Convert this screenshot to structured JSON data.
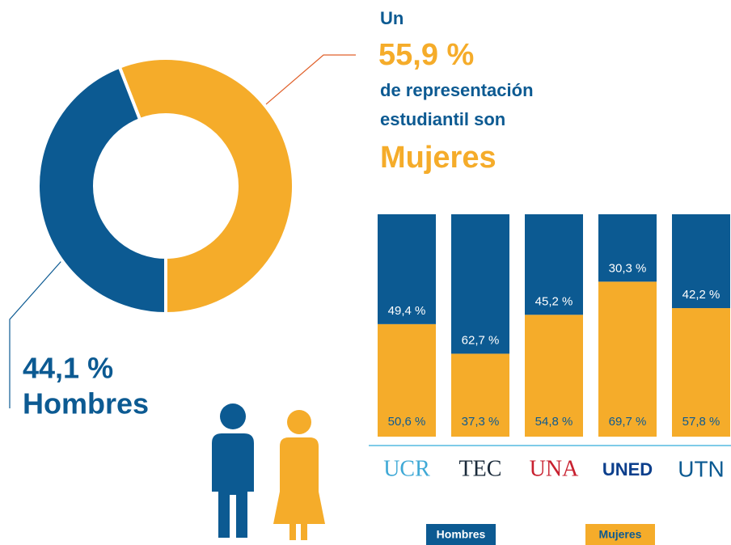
{
  "chart_data": [
    {
      "type": "donut",
      "annotations": [
        "Un",
        "de representación",
        "estudiantil son"
      ],
      "categories": [
        "Mujeres",
        "Hombres"
      ],
      "values": [
        55.9,
        44.1
      ],
      "value_labels": [
        "55,9 %",
        "44,1 %"
      ],
      "colors": [
        "#f5ac2a",
        "#0c5a92"
      ]
    },
    {
      "type": "stacked_bar",
      "categories": [
        "UCR",
        "TEC",
        "UNA",
        "UNED",
        "UTN"
      ],
      "ylim": [
        0,
        100
      ],
      "series": [
        {
          "name": "Mujeres",
          "color": "#f5ac2a",
          "values": [
            50.6,
            37.3,
            54.8,
            69.7,
            57.8
          ],
          "value_labels": [
            "50,6 %",
            "37,3 %",
            "54,8 %",
            "69,7 %",
            "57,8 %"
          ]
        },
        {
          "name": "Hombres",
          "color": "#0c5a92",
          "values": [
            49.4,
            62.7,
            45.2,
            30.3,
            42.2
          ],
          "value_labels": [
            "49,4 %",
            "62,7 %",
            "45,2 %",
            "30,3 %",
            "42,2 %"
          ]
        }
      ]
    }
  ]
}
